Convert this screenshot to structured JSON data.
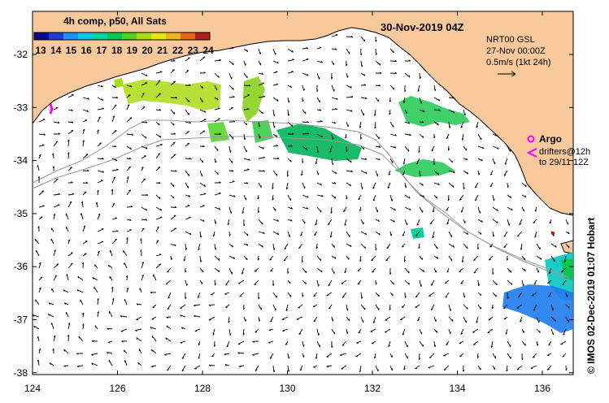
{
  "map": {
    "date_title": "30-Nov-2019 04Z",
    "sst_title": "4h comp, p50, All Sats",
    "colorbar_ticks": [
      "13",
      "14",
      "15",
      "16",
      "17",
      "18",
      "19",
      "20",
      "21",
      "22",
      "23",
      "24"
    ],
    "colorbar_colors": [
      "#0a0a8c",
      "#1e3cd2",
      "#1e90ff",
      "#00c8e6",
      "#00d2a0",
      "#00c850",
      "#50d21e",
      "#aadc14",
      "#e6e614",
      "#f0b41e",
      "#e66414",
      "#b41e1e"
    ],
    "lat_ticks": [
      "-32",
      "-33",
      "-34",
      "-35",
      "-36",
      "-37",
      "-38"
    ],
    "lon_ticks": [
      "124",
      "126",
      "128",
      "130",
      "132",
      "134",
      "136"
    ],
    "gsl_line": "NRT00 GSL",
    "gsl_time": "27-Nov 00:00Z",
    "scale_label": "0.5m/s (1kt 24h)",
    "argo_label": "Argo",
    "drifter_line1": "drifters@12h",
    "drifter_line2": "to 29/11 12Z",
    "credit": "© IMOS 02-Dec-2019 01:07 Hobart",
    "colors": {
      "land": "#f9c89b",
      "argo": "#ff00ff",
      "coast": "#000000",
      "isobath": "#aaaaaa"
    }
  }
}
